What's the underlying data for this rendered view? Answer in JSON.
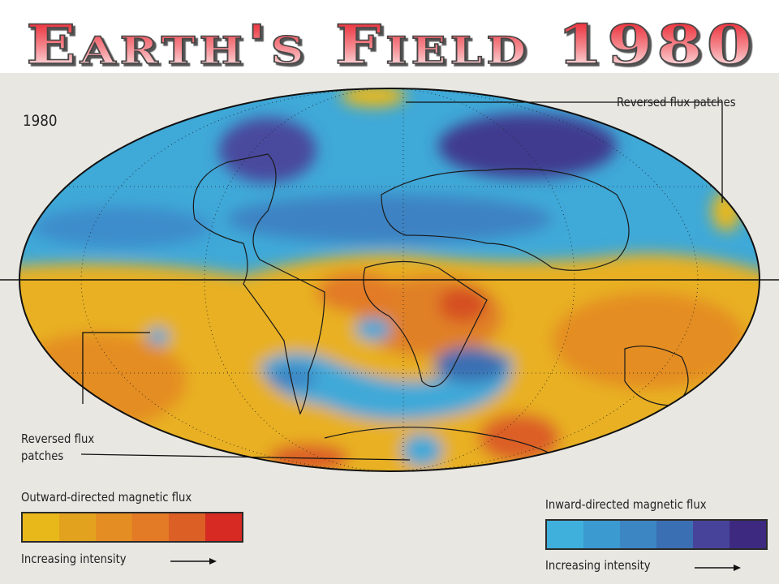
{
  "title": "Earth's Field 1980",
  "map": {
    "year_label": "1980",
    "callouts": [
      "Reversed flux patches",
      "Reversed flux patches"
    ],
    "outward_legend": {
      "title": "Outward-directed magnetic flux",
      "caption": "Increasing intensity",
      "colors": [
        "#e8b81a",
        "#e3a21e",
        "#e48d22",
        "#e27a26",
        "#dc5f26",
        "#d62a22"
      ]
    },
    "inward_legend": {
      "title": "Inward-directed magnetic flux",
      "caption": "Increasing intensity",
      "colors": [
        "#3fb0dc",
        "#3b9ad0",
        "#3d86c4",
        "#3b6fb3",
        "#47439a",
        "#3d2a80"
      ]
    }
  }
}
